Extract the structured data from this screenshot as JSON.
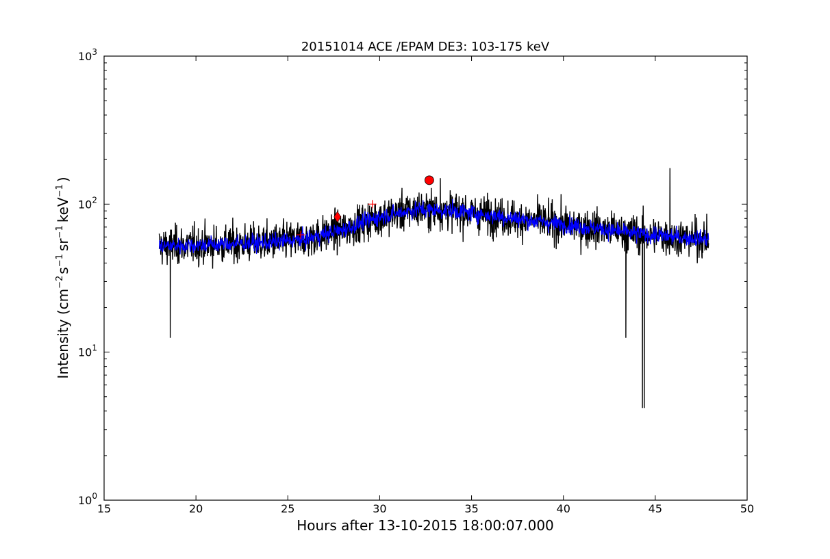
{
  "chart_data": {
    "type": "line",
    "title": "20151014 ACE /EPAM DE3: 103-175 keV",
    "xlabel": "Hours after 13-10-2015 18:00:07.000",
    "ylabel": {
      "prefix": "Intensity (cm",
      "exp1": "−2",
      "mid1": "s",
      "exp2": "−1",
      "mid2": "sr",
      "exp3": "−1",
      "mid3": "keV",
      "exp4": "−1",
      "suffix": ")"
    },
    "xlim": [
      15,
      50
    ],
    "ylim": [
      1,
      1000
    ],
    "yscale": "log",
    "grid": false,
    "x_ticks": [
      "15",
      "20",
      "25",
      "30",
      "35",
      "40",
      "45",
      "50"
    ],
    "y_ticks": [
      {
        "base": "10",
        "exp": "0"
      },
      {
        "base": "10",
        "exp": "1"
      },
      {
        "base": "10",
        "exp": "2"
      },
      {
        "base": "10",
        "exp": "3"
      }
    ],
    "series": [
      {
        "style": "raw",
        "color": "#000000",
        "x_range": [
          18.0,
          47.9
        ],
        "baseline_profile": {
          "x": [
            18,
            20,
            22,
            24,
            26,
            28,
            30,
            32,
            34,
            36,
            38,
            40,
            42,
            44,
            46,
            47.9
          ],
          "y": [
            52,
            53,
            54,
            55,
            58,
            67,
            82,
            92,
            90,
            84,
            78,
            73,
            68,
            63,
            60,
            58
          ]
        },
        "spikes_high": [
          {
            "x": 45.8,
            "y": 175
          },
          {
            "x": 33.3,
            "y": 150
          }
        ],
        "dips_low": [
          {
            "x": 18.6,
            "y": 12.5
          },
          {
            "x": 43.4,
            "y": 12.5
          },
          {
            "x": 44.3,
            "y": 4.2
          },
          {
            "x": 44.4,
            "y": 4.2
          }
        ]
      },
      {
        "style": "smoothed",
        "color": "#0000ff",
        "x_range": [
          18.0,
          47.9
        ],
        "baseline_profile": {
          "x": [
            18,
            20,
            22,
            24,
            26,
            28,
            30,
            32,
            34,
            36,
            38,
            40,
            42,
            44,
            46,
            47.9
          ],
          "y": [
            52,
            53,
            54,
            55,
            58,
            67,
            82,
            92,
            90,
            84,
            78,
            73,
            68,
            63,
            60,
            58
          ]
        }
      }
    ],
    "markers": [
      {
        "shape": "plus",
        "x": 25.7,
        "y": 62,
        "color": "#ff0000"
      },
      {
        "shape": "diamond",
        "x": 27.7,
        "y": 82,
        "color": "#ff0000"
      },
      {
        "shape": "plus",
        "x": 29.6,
        "y": 100,
        "color": "#ff0000"
      },
      {
        "shape": "circle",
        "x": 32.7,
        "y": 145,
        "color": "#ff0000"
      }
    ]
  }
}
